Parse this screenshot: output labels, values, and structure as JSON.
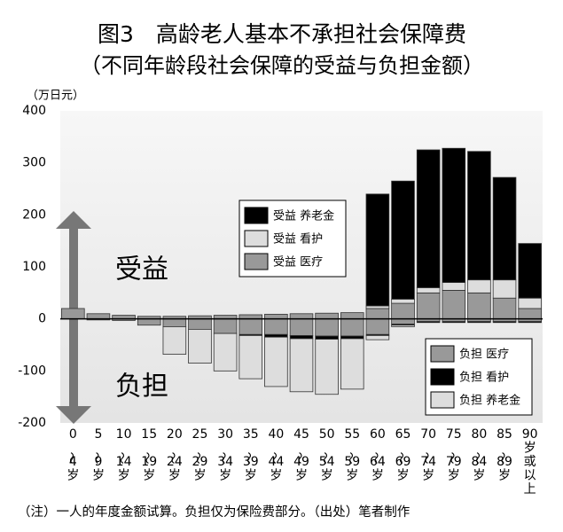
{
  "chart_data": {
    "type": "bar",
    "title": "图3　高龄老人基本不承担社会保障费",
    "subtitle": "（不同年龄段社会保障的受益与负担金额）",
    "y_label": "（万日元）",
    "note": "（注）一人的年度金额试算。负担仅为保险费部分。（出处）笔者制作",
    "annotations": [
      "受益",
      "负担"
    ],
    "categories": [
      "0～4岁",
      "5～9岁",
      "10～14岁",
      "15～19岁",
      "20～24岁",
      "25～29岁",
      "30～34岁",
      "35～39岁",
      "40～44岁",
      "45～49岁",
      "50～54岁",
      "55～59岁",
      "60～64岁",
      "65～69岁",
      "70～74岁",
      "75～79岁",
      "80～84岁",
      "85～89岁",
      "90岁或以上"
    ],
    "series": [
      {
        "name": "受益 养老金",
        "color": "#000000",
        "values": [
          0,
          0,
          0,
          0,
          0,
          0,
          0,
          0,
          0,
          0,
          0,
          0,
          215,
          227,
          265,
          258,
          247,
          197,
          105
        ]
      },
      {
        "name": "受益 看护",
        "color": "#dddddd",
        "values": [
          0,
          0,
          0,
          0,
          0,
          0,
          0,
          0,
          0,
          0,
          0,
          0,
          5,
          8,
          10,
          15,
          25,
          35,
          20
        ]
      },
      {
        "name": "受益 医疗",
        "color": "#999999",
        "values": [
          20,
          10,
          7,
          5,
          5,
          6,
          7,
          8,
          9,
          10,
          11,
          12,
          20,
          30,
          50,
          55,
          50,
          40,
          20
        ]
      },
      {
        "name": "负担 医疗",
        "color": "#999999",
        "values": [
          0,
          -2,
          -3,
          -12,
          -15,
          -20,
          -28,
          -30,
          -30,
          -32,
          -33,
          -33,
          -30,
          -10,
          -5,
          -5,
          -5,
          -5,
          -5
        ]
      },
      {
        "name": "负担 看护",
        "color": "#000000",
        "values": [
          0,
          0,
          0,
          0,
          0,
          0,
          0,
          -2,
          -5,
          -6,
          -6,
          -5,
          -2,
          -2,
          -2,
          -2,
          -2,
          -2,
          -2
        ]
      },
      {
        "name": "负担 养老金",
        "color": "#dddddd",
        "values": [
          0,
          0,
          0,
          0,
          -53,
          -65,
          -72,
          -83,
          -95,
          -102,
          -106,
          -97,
          -8,
          -3,
          0,
          0,
          0,
          0,
          0
        ]
      }
    ],
    "ylim": [
      -200,
      400
    ],
    "yticks": [
      -200,
      -100,
      0,
      100,
      200,
      300,
      400
    ]
  }
}
